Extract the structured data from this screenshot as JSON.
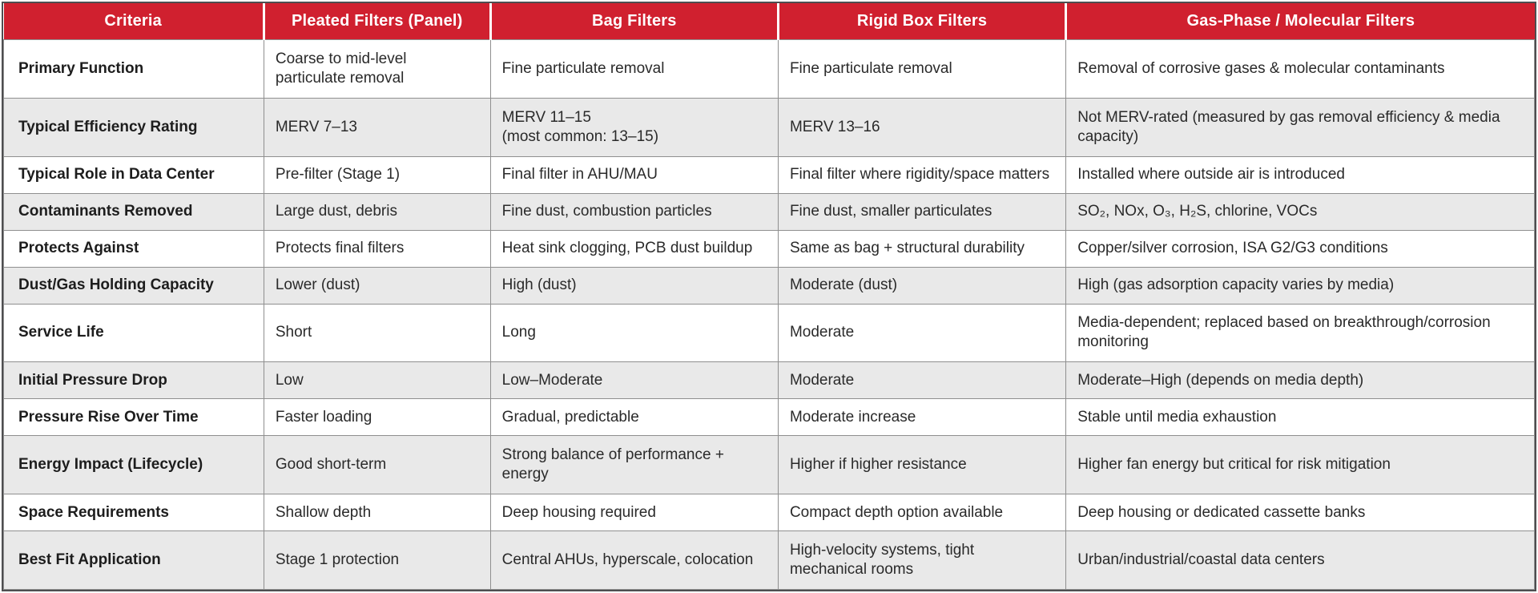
{
  "colors": {
    "header_bg": "#D0202F",
    "header_text": "#FFFFFF",
    "row_bg": "#FFFFFF",
    "row_alt_bg": "#E9E9E9",
    "grid_line": "#8F8F8F",
    "outer_border": "#4E4E50",
    "body_text": "#2A2A2A"
  },
  "table": {
    "columns": [
      {
        "label": "Criteria"
      },
      {
        "label": "Pleated Filters (Panel)"
      },
      {
        "label": "Bag Filters"
      },
      {
        "label": "Rigid Box Filters"
      },
      {
        "label": "Gas-Phase / Molecular Filters"
      }
    ],
    "rows": [
      {
        "criteria": "Primary Function",
        "cells": [
          "Coarse to mid-level particulate removal",
          "Fine particulate removal",
          "Fine particulate removal",
          "Removal of corrosive gases & molecular contaminants"
        ]
      },
      {
        "criteria": "Typical Efficiency Rating",
        "cells": [
          "MERV 7–13",
          "MERV 11–15\n(most common: 13–15)",
          "MERV 13–16",
          "Not MERV-rated (measured by gas removal efficiency & media capacity)"
        ]
      },
      {
        "criteria": "Typical Role in Data Center",
        "cells": [
          "Pre-filter (Stage 1)",
          "Final filter in AHU/MAU",
          "Final filter where rigidity/space matters",
          "Installed where outside air is introduced"
        ]
      },
      {
        "criteria": "Contaminants Removed",
        "cells": [
          "Large dust, debris",
          "Fine dust, combustion particles",
          "Fine dust, smaller particulates",
          "SO₂, NOx, O₃, H₂S, chlorine, VOCs"
        ]
      },
      {
        "criteria": "Protects Against",
        "cells": [
          "Protects final filters",
          "Heat sink clogging, PCB dust buildup",
          "Same as bag + structural durability",
          "Copper/silver corrosion, ISA G2/G3 conditions"
        ]
      },
      {
        "criteria": "Dust/Gas Holding Capacity",
        "cells": [
          "Lower (dust)",
          "High (dust)",
          "Moderate (dust)",
          "High (gas adsorption capacity varies by media)"
        ]
      },
      {
        "criteria": "Service Life",
        "cells": [
          "Short",
          "Long",
          "Moderate",
          "Media-dependent; replaced based on breakthrough/corrosion monitoring"
        ]
      },
      {
        "criteria": "Initial Pressure Drop",
        "cells": [
          "Low",
          "Low–Moderate",
          "Moderate",
          "Moderate–High (depends on media depth)"
        ]
      },
      {
        "criteria": "Pressure Rise Over Time",
        "cells": [
          "Faster loading",
          "Gradual, predictable",
          "Moderate increase",
          "Stable until media exhaustion"
        ]
      },
      {
        "criteria": "Energy Impact (Lifecycle)",
        "cells": [
          "Good short-term",
          "Strong balance of performance + energy",
          "Higher if higher resistance",
          "Higher fan energy but critical for risk mitigation"
        ]
      },
      {
        "criteria": "Space Requirements",
        "cells": [
          "Shallow depth",
          "Deep housing required",
          "Compact depth option available",
          "Deep housing or dedicated cassette banks"
        ]
      },
      {
        "criteria": "Best Fit Application",
        "cells": [
          "Stage 1 protection",
          "Central AHUs, hyperscale, colocation",
          "High-velocity systems, tight mechanical rooms",
          "Urban/industrial/coastal data centers"
        ]
      }
    ]
  }
}
